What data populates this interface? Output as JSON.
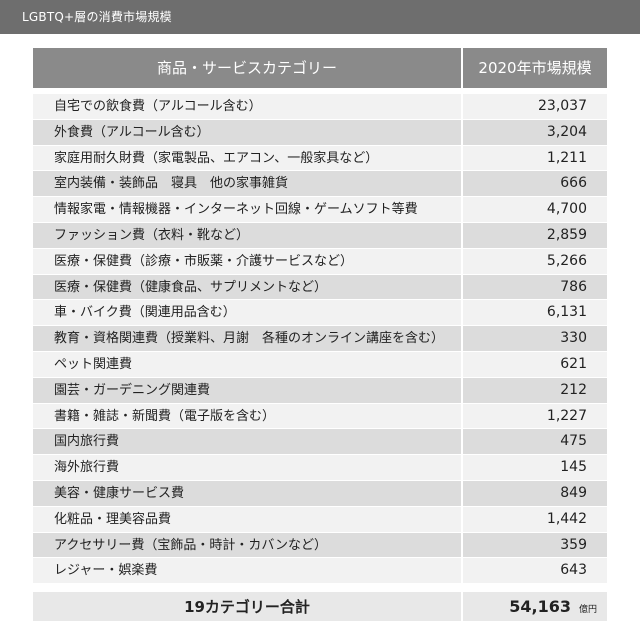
{
  "title": "LGBTQ+層の消費市場規模",
  "header": {
    "category": "商品・サービスカテゴリー",
    "value": "2020年市場規模"
  },
  "rows": [
    {
      "category": "自宅での飲食費（アルコール含む）",
      "value": "23,037"
    },
    {
      "category": "外食費（アルコール含む）",
      "value": "3,204"
    },
    {
      "category": "家庭用耐久財費（家電製品、エアコン、一般家具など）",
      "value": "1,211"
    },
    {
      "category": "室内装備・装飾品　寝具　他の家事雑貨",
      "value": "666"
    },
    {
      "category": "情報家電・情報機器・インターネット回線・ゲームソフト等費",
      "value": "4,700"
    },
    {
      "category": "ファッション費（衣料・靴など）",
      "value": "2,859"
    },
    {
      "category": "医療・保健費（診療・市販薬・介護サービスなど）",
      "value": "5,266"
    },
    {
      "category": "医療・保健費（健康食品、サプリメントなど）",
      "value": "786"
    },
    {
      "category": "車・バイク費（関連用品含む）",
      "value": "6,131"
    },
    {
      "category": "教育・資格関連費（授業料、月謝　各種のオンライン講座を含む）",
      "value": "330"
    },
    {
      "category": "ペット関連費",
      "value": "621"
    },
    {
      "category": "園芸・ガーデニング関連費",
      "value": "212"
    },
    {
      "category": "書籍・雑誌・新聞費（電子版を含む）",
      "value": "1,227"
    },
    {
      "category": "国内旅行費",
      "value": "475"
    },
    {
      "category": "海外旅行費",
      "value": "145"
    },
    {
      "category": "美容・健康サービス費",
      "value": "849"
    },
    {
      "category": "化粧品・理美容品費",
      "value": "1,442"
    },
    {
      "category": "アクセサリー費（宝飾品・時計・カバンなど）",
      "value": "359"
    },
    {
      "category": "レジャー・娯楽費",
      "value": "643"
    }
  ],
  "total": {
    "label": "19カテゴリー合計",
    "value": "54,163",
    "unit": "億円"
  }
}
